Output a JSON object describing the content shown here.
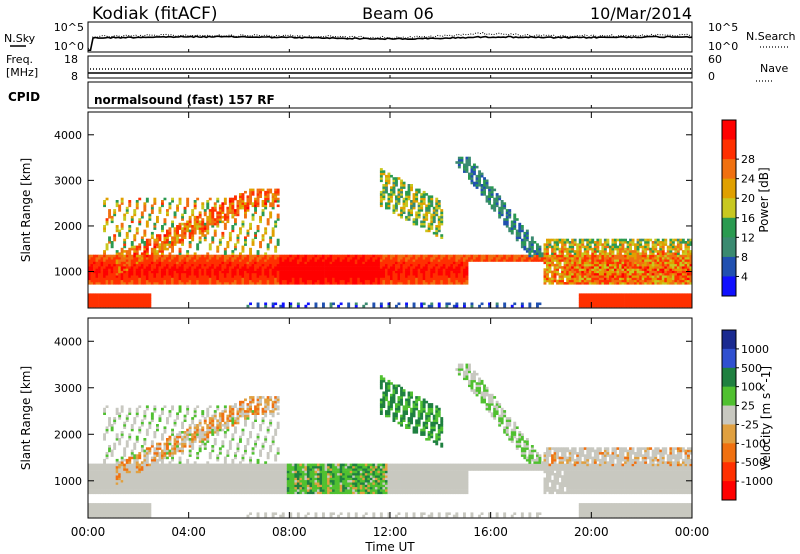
{
  "header": {
    "station": "Kodiak (fitACF)",
    "beam": "Beam 06",
    "date": "10/Mar/2014"
  },
  "status_panels": {
    "nsky_label": "N.Sky",
    "nsearch_label": "N.Search",
    "noise_ticks": [
      "10^5",
      "10^0"
    ],
    "freq_label_1": "Freq.",
    "freq_label_2": "[MHz]",
    "freq_ticks": [
      "18",
      "8"
    ],
    "nave_label": "Nave",
    "nave_ticks": [
      "60",
      "0"
    ],
    "cpid_label": "CPID",
    "cpid_value": "normalsound (fast) 157 RF"
  },
  "colors": {
    "power_scale": [
      "#1010ff",
      "#2050b0",
      "#3a8a70",
      "#2a9a50",
      "#c8c820",
      "#e0a000",
      "#f07010",
      "#ff3000",
      "#ff0000"
    ],
    "velocity_scale": [
      "#1a2a90",
      "#3050d0",
      "#1f8040",
      "#50c030",
      "#c8c8c0",
      "#e0a040",
      "#f07010",
      "#ff3000",
      "#ff0000"
    ]
  },
  "chart_data": [
    {
      "type": "heatmap",
      "name": "Power",
      "xlabel": "",
      "ylabel": "Slant Range [km]",
      "xlim": [
        0,
        24
      ],
      "ylim": [
        200,
        4500
      ],
      "yticks": [
        1000,
        2000,
        3000,
        4000
      ],
      "colorbar_label": "Power [dB]",
      "colorbar_ticks": [
        "4",
        "8",
        "12",
        "16",
        "20",
        "24",
        "28"
      ],
      "colorbar_range": [
        0,
        30
      ]
    },
    {
      "type": "heatmap",
      "name": "Velocity",
      "xlabel": "Time UT",
      "ylabel": "Slant Range [km]",
      "xlim": [
        0,
        24
      ],
      "ylim": [
        200,
        4500
      ],
      "yticks": [
        1000,
        2000,
        3000,
        4000
      ],
      "xtick_labels": [
        "00:00",
        "04:00",
        "08:00",
        "12:00",
        "16:00",
        "20:00",
        "00:00"
      ],
      "colorbar_label": "Velocity [m s^-1]",
      "colorbar_ticks": [
        "1000",
        "500",
        "100",
        "25",
        "-25",
        "-100",
        "-500",
        "-1000"
      ]
    }
  ]
}
